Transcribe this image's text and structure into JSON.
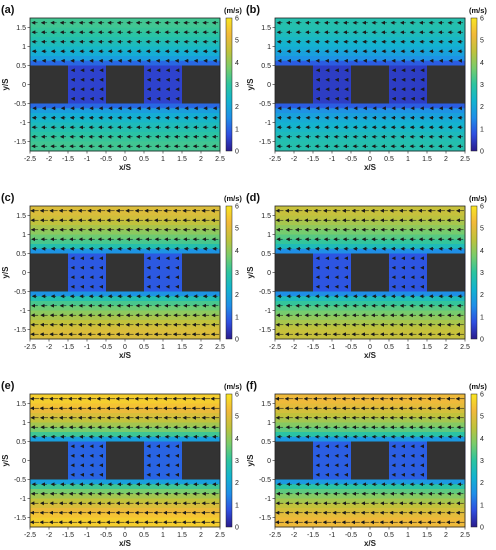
{
  "figure": {
    "x_tick_labels": [
      "-2.5",
      "-2",
      "-1.5",
      "-1",
      "-0.5",
      "0",
      "0.5",
      "1",
      "1.5",
      "2",
      "2.5"
    ],
    "y_tick_labels": [
      "1.5",
      "1",
      "0.5",
      "0",
      "-0.5",
      "-1",
      "-1.5"
    ],
    "colorbar_tick_labels": [
      "6",
      "5",
      "4",
      "3",
      "2",
      "1",
      "0"
    ],
    "colors": {
      "colormap": [
        "#2a1b8c",
        "#2f4ee0",
        "#1f8ee8",
        "#13b3d0",
        "#2cc4a0",
        "#79cc6c",
        "#c0c23c",
        "#f2b93a",
        "#f9e521"
      ],
      "obstacle": "#333333",
      "arrow": "#1a1a1a"
    }
  },
  "chart_data": [
    {
      "type": "heatmap",
      "panel_label": "(a)",
      "xlabel": "x/S",
      "ylabel": "y/S",
      "xlim": [
        -2.5,
        2.5
      ],
      "ylim": [
        -1.75,
        1.75
      ],
      "colorbar_label": "(m/s)",
      "colorbar_range": [
        0,
        6
      ],
      "free_stream_speed_approx": 3.2,
      "obstacles_x_ranges": [
        [
          -2.5,
          -1.5
        ],
        [
          -0.5,
          0.5
        ],
        [
          1.5,
          2.5
        ]
      ],
      "obstacles_y_range": [
        -0.5,
        0.5
      ]
    },
    {
      "type": "heatmap",
      "panel_label": "(b)",
      "xlabel": "x/S",
      "ylabel": "y/S",
      "xlim": [
        -2.5,
        2.5
      ],
      "ylim": [
        -1.75,
        1.75
      ],
      "colorbar_label": "(m/s)",
      "colorbar_range": [
        0,
        6
      ],
      "free_stream_speed_approx": 2.8,
      "obstacles_x_ranges": [
        [
          -2.5,
          -1.5
        ],
        [
          -0.5,
          0.5
        ],
        [
          1.5,
          2.5
        ]
      ],
      "obstacles_y_range": [
        -0.5,
        0.5
      ]
    },
    {
      "type": "heatmap",
      "panel_label": "(c)",
      "xlabel": "x/S",
      "ylabel": "y/S",
      "xlim": [
        -2.5,
        2.5
      ],
      "ylim": [
        -1.75,
        1.75
      ],
      "colorbar_label": "(m/s)",
      "colorbar_range": [
        0,
        6
      ],
      "free_stream_speed_approx": 4.9,
      "obstacles_x_ranges": [
        [
          -2.5,
          -1.5
        ],
        [
          -0.5,
          0.5
        ],
        [
          1.5,
          2.5
        ]
      ],
      "obstacles_y_range": [
        -0.5,
        0.5
      ]
    },
    {
      "type": "heatmap",
      "panel_label": "(d)",
      "xlabel": "x/S",
      "ylabel": "y/S",
      "xlim": [
        -2.5,
        2.5
      ],
      "ylim": [
        -1.75,
        1.75
      ],
      "colorbar_label": "(m/s)",
      "colorbar_range": [
        0,
        6
      ],
      "free_stream_speed_approx": 4.6,
      "obstacles_x_ranges": [
        [
          -2.5,
          -1.5
        ],
        [
          -0.5,
          0.5
        ],
        [
          1.5,
          2.5
        ]
      ],
      "obstacles_y_range": [
        -0.5,
        0.5
      ]
    },
    {
      "type": "heatmap",
      "panel_label": "(e)",
      "xlabel": "x/S",
      "ylabel": "y/S",
      "xlim": [
        -2.5,
        2.5
      ],
      "ylim": [
        -1.75,
        1.75
      ],
      "colorbar_label": "(m/s)",
      "colorbar_range": [
        0,
        6
      ],
      "free_stream_speed_approx": 5.6,
      "obstacles_x_ranges": [
        [
          -2.5,
          -1.5
        ],
        [
          -0.5,
          0.5
        ],
        [
          1.5,
          2.5
        ]
      ],
      "obstacles_y_range": [
        -0.5,
        0.5
      ]
    },
    {
      "type": "heatmap",
      "panel_label": "(f)",
      "xlabel": "x/S",
      "ylabel": "y/S",
      "xlim": [
        -2.5,
        2.5
      ],
      "ylim": [
        -1.75,
        1.75
      ],
      "colorbar_label": "(m/s)",
      "colorbar_range": [
        0,
        6
      ],
      "free_stream_speed_approx": 5.2,
      "obstacles_x_ranges": [
        [
          -2.5,
          -1.5
        ],
        [
          -0.5,
          0.5
        ],
        [
          1.5,
          2.5
        ]
      ],
      "obstacles_y_range": [
        -0.5,
        0.5
      ]
    }
  ]
}
